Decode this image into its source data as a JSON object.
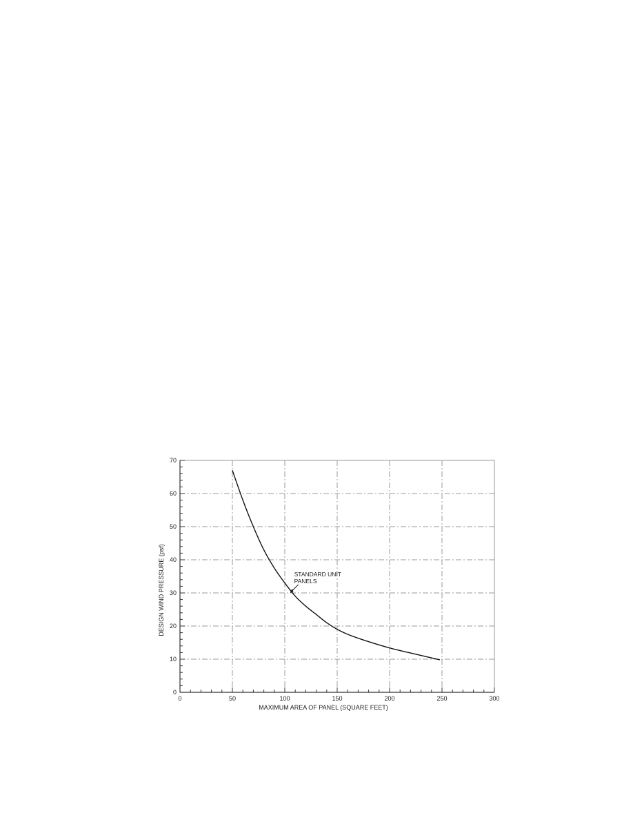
{
  "chart_data": {
    "type": "line",
    "title": "",
    "xlabel": "MAXIMUM AREA OF PANEL (SQUARE FEET)",
    "ylabel": "DESIGN WIND PRESSURE (psf)",
    "xlim": [
      0,
      300
    ],
    "ylim": [
      0,
      70
    ],
    "xticks": [
      0,
      50,
      100,
      150,
      200,
      250,
      300
    ],
    "yticks": [
      0,
      10,
      20,
      30,
      40,
      50,
      60,
      70
    ],
    "grid": true,
    "series": [
      {
        "x": [
          50,
          60,
          70,
          80,
          90,
          100,
          110,
          120,
          130,
          140,
          150,
          160,
          175,
          200,
          225,
          248
        ],
        "y": [
          67,
          58,
          50,
          43,
          37.5,
          33,
          29,
          26,
          23.5,
          21,
          19,
          17.5,
          15.8,
          13.4,
          11.5,
          9.8
        ]
      }
    ],
    "annotations": [
      {
        "text_lines": [
          "STANDARD UNIT",
          "PANELS"
        ],
        "x": 105,
        "y": 30
      }
    ],
    "colors": {
      "line": "#111111",
      "grid": "#9a9a9a",
      "axis": "#333333"
    }
  }
}
